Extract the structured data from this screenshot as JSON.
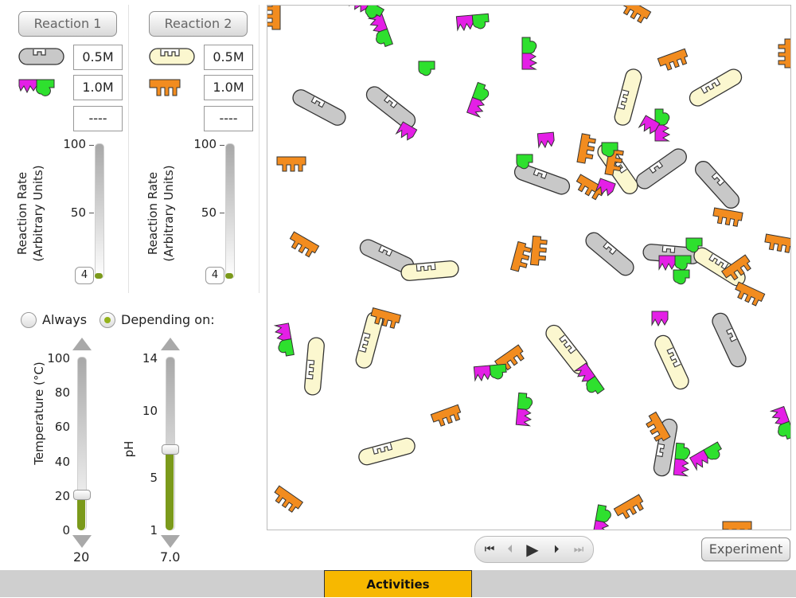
{
  "reaction1": {
    "button": "Reaction 1",
    "conc1": "0.5M",
    "conc2": "1.0M",
    "conc3": "----",
    "icon1": "gray-enzyme-icon",
    "icon2": "magenta-green-substrate-icon",
    "rate_title_line1": "Reaction Rate",
    "rate_title_line2": "(Arbitrary Units)",
    "ticks": [
      "100",
      "50",
      "0"
    ],
    "value": "4",
    "rate": 4
  },
  "reaction2": {
    "button": "Reaction 2",
    "conc1": "0.5M",
    "conc2": "1.0M",
    "conc3": "----",
    "icon1": "cream-enzyme-icon",
    "icon2": "orange-substrate-icon",
    "rate_title_line1": "Reaction Rate",
    "rate_title_line2": "(Arbitrary Units)",
    "ticks": [
      "100",
      "50",
      "0"
    ],
    "value": "4",
    "rate": 4
  },
  "mode": {
    "always": "Always",
    "depending": "Depending on:",
    "selected": "depending"
  },
  "temperature": {
    "label": "Temperature (°C)",
    "ticks": [
      "100",
      "80",
      "60",
      "40",
      "20",
      "0"
    ],
    "value": "20",
    "level": 20
  },
  "ph": {
    "label": "pH",
    "ticks": [
      "14",
      "10",
      "5",
      "1"
    ],
    "value": "7.0",
    "level": 7.0
  },
  "controls": {
    "experiment": "Experiment"
  },
  "footer": {
    "tab": "Activities"
  },
  "colors": {
    "orange": "#f28c1f",
    "green": "#2ee02e",
    "magenta": "#e41fe6",
    "gray": "#c8c8c8",
    "cream": "#fbf7cf",
    "accent": "#f7b800"
  }
}
